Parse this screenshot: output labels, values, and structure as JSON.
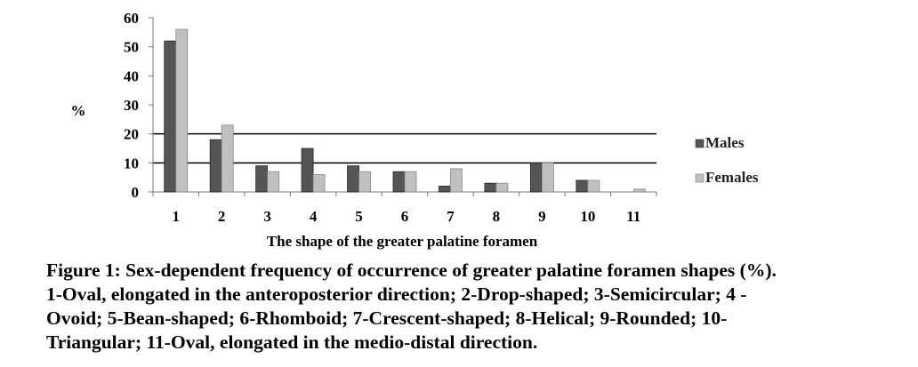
{
  "chart_data": {
    "type": "bar",
    "title": "",
    "xlabel": "The shape of the greater palatine foramen",
    "ylabel": "%",
    "ylim": [
      0,
      60
    ],
    "yticks": [
      "0",
      "10",
      "20",
      "30",
      "40",
      "50",
      "60"
    ],
    "categories": [
      "1",
      "2",
      "3",
      "4",
      "5",
      "6",
      "7",
      "8",
      "9",
      "10",
      "11"
    ],
    "series": [
      {
        "name": "Males",
        "values": [
          52,
          18,
          9,
          15,
          9,
          7,
          2,
          3,
          10,
          4,
          0
        ],
        "color": "#555555"
      },
      {
        "name": "Females",
        "values": [
          56,
          23,
          7,
          6,
          7,
          7,
          8,
          3,
          10,
          4,
          1
        ],
        "color": "#c0c0c0"
      }
    ],
    "grid": "horizontal lines at 10 and 20",
    "legend_position": "right"
  },
  "caption": {
    "lines": [
      "Figure 1: Sex-dependent frequency of occurrence of greater palatine foramen shapes (%).",
      "1-Oval, elongated in the anteroposterior direction; 2-Drop-shaped; 3-Semicircular; 4 -",
      "Ovoid; 5-Bean-shaped; 6-Rhomboid; 7-Crescent-shaped; 8-Helical; 9-Rounded; 10-",
      "Triangular; 11-Oval, elongated in the medio-distal direction."
    ]
  }
}
